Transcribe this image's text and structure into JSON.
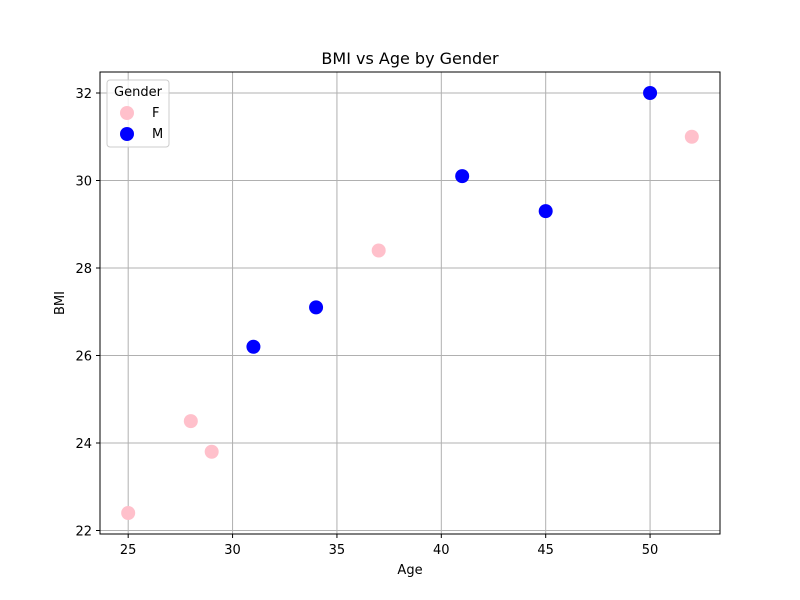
{
  "chart_data": {
    "type": "scatter",
    "title": "BMI vs Age by Gender",
    "xlabel": "Age",
    "ylabel": "BMI",
    "xlim": [
      23.65,
      53.35
    ],
    "ylim": [
      21.92,
      32.48
    ],
    "xticks": [
      25,
      30,
      35,
      40,
      45,
      50
    ],
    "yticks": [
      22,
      24,
      26,
      28,
      30,
      32
    ],
    "grid": true,
    "legend": {
      "title": "Gender",
      "placement": "top-left"
    },
    "series": [
      {
        "name": "F",
        "color": "#ffc0cb",
        "points": [
          {
            "x": 25,
            "y": 22.4
          },
          {
            "x": 28,
            "y": 24.5
          },
          {
            "x": 29,
            "y": 23.8
          },
          {
            "x": 37,
            "y": 28.4
          },
          {
            "x": 52,
            "y": 31.0
          }
        ]
      },
      {
        "name": "M",
        "color": "#0000ff",
        "points": [
          {
            "x": 31,
            "y": 26.2
          },
          {
            "x": 34,
            "y": 27.1
          },
          {
            "x": 41,
            "y": 30.1
          },
          {
            "x": 45,
            "y": 29.3
          },
          {
            "x": 50,
            "y": 32.0
          }
        ]
      }
    ]
  }
}
